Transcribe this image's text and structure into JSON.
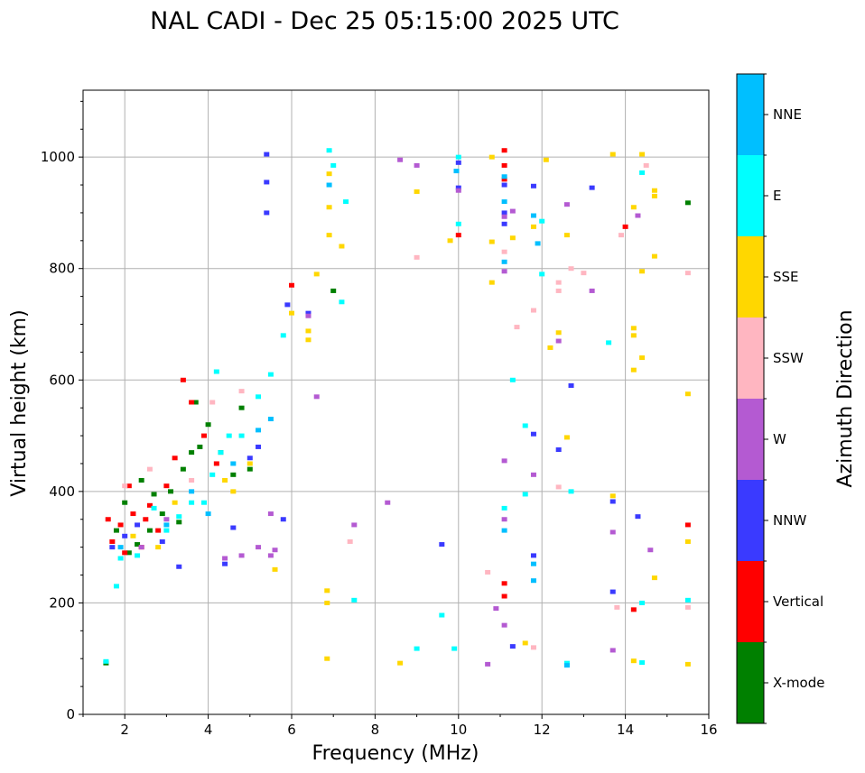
{
  "chart_data": {
    "type": "scatter",
    "title": "NAL CADI - Dec 25 05:15:00 2025 UTC",
    "xlabel": "Frequency (MHz)",
    "ylabel": "Virtual height (km)",
    "xlim": [
      1,
      16
    ],
    "ylim": [
      0,
      1120
    ],
    "xticks": [
      2,
      4,
      6,
      8,
      10,
      12,
      14,
      16
    ],
    "yticks": [
      0,
      200,
      400,
      600,
      800,
      1000
    ],
    "grid": true,
    "colorbar": {
      "title": "Azimuth Direction",
      "categories": [
        {
          "name": "X-mode",
          "color": "#008000"
        },
        {
          "name": "Vertical",
          "color": "#ff0000"
        },
        {
          "name": "NNW",
          "color": "#3a3aff"
        },
        {
          "name": "W",
          "color": "#b45ad2"
        },
        {
          "name": "SSW",
          "color": "#ffb6c1"
        },
        {
          "name": "SSE",
          "color": "#ffd700"
        },
        {
          "name": "E",
          "color": "#00ffff"
        },
        {
          "name": "NNE",
          "color": "#00bfff"
        }
      ]
    },
    "series": [
      {
        "name": "X-mode",
        "points": [
          [
            1.55,
            92
          ],
          [
            1.8,
            330
          ],
          [
            2.1,
            290
          ],
          [
            2.3,
            305
          ],
          [
            2.6,
            330
          ],
          [
            2.9,
            360
          ],
          [
            3.1,
            400
          ],
          [
            3.4,
            440
          ],
          [
            3.6,
            470
          ],
          [
            3.8,
            480
          ],
          [
            4.0,
            520
          ],
          [
            4.3,
            470
          ],
          [
            4.6,
            430
          ],
          [
            4.8,
            550
          ],
          [
            2.0,
            380
          ],
          [
            2.4,
            420
          ],
          [
            2.7,
            395
          ],
          [
            3.3,
            345
          ],
          [
            3.7,
            560
          ],
          [
            5.0,
            440
          ],
          [
            7.0,
            760
          ],
          [
            15.5,
            918
          ]
        ]
      },
      {
        "name": "Vertical",
        "points": [
          [
            1.6,
            350
          ],
          [
            1.7,
            310
          ],
          [
            1.9,
            340
          ],
          [
            2.0,
            290
          ],
          [
            2.2,
            360
          ],
          [
            2.4,
            300
          ],
          [
            2.6,
            375
          ],
          [
            2.8,
            330
          ],
          [
            3.0,
            410
          ],
          [
            3.2,
            460
          ],
          [
            3.4,
            600
          ],
          [
            3.6,
            560
          ],
          [
            3.9,
            500
          ],
          [
            4.2,
            450
          ],
          [
            2.1,
            410
          ],
          [
            2.5,
            350
          ],
          [
            6.0,
            770
          ],
          [
            10.0,
            860
          ],
          [
            11.1,
            235
          ],
          [
            11.1,
            212
          ],
          [
            11.1,
            1012
          ],
          [
            11.1,
            985
          ],
          [
            11.1,
            960
          ],
          [
            14.0,
            875
          ],
          [
            14.2,
            188
          ],
          [
            15.5,
            340
          ]
        ]
      },
      {
        "name": "NNW",
        "points": [
          [
            1.7,
            300
          ],
          [
            2.0,
            320
          ],
          [
            2.3,
            340
          ],
          [
            2.9,
            310
          ],
          [
            3.3,
            265
          ],
          [
            4.4,
            270
          ],
          [
            4.6,
            335
          ],
          [
            5.0,
            460
          ],
          [
            5.2,
            480
          ],
          [
            5.4,
            900
          ],
          [
            5.4,
            955
          ],
          [
            5.4,
            1005
          ],
          [
            5.8,
            350
          ],
          [
            5.9,
            735
          ],
          [
            6.4,
            720
          ],
          [
            10.0,
            945
          ],
          [
            10.0,
            990
          ],
          [
            11.1,
            950
          ],
          [
            11.1,
            900
          ],
          [
            11.1,
            880
          ],
          [
            11.3,
            122
          ],
          [
            11.8,
            285
          ],
          [
            11.8,
            503
          ],
          [
            11.8,
            948
          ],
          [
            12.4,
            475
          ],
          [
            12.7,
            590
          ],
          [
            13.2,
            945
          ],
          [
            13.7,
            220
          ],
          [
            13.7,
            382
          ],
          [
            14.3,
            355
          ],
          [
            9.6,
            305
          ]
        ]
      },
      {
        "name": "W",
        "points": [
          [
            2.4,
            300
          ],
          [
            3.0,
            350
          ],
          [
            4.4,
            280
          ],
          [
            4.8,
            285
          ],
          [
            5.2,
            300
          ],
          [
            5.5,
            285
          ],
          [
            5.5,
            360
          ],
          [
            5.6,
            295
          ],
          [
            6.4,
            715
          ],
          [
            6.6,
            570
          ],
          [
            7.5,
            340
          ],
          [
            8.3,
            380
          ],
          [
            8.6,
            995
          ],
          [
            9.0,
            985
          ],
          [
            10.0,
            940
          ],
          [
            10.7,
            90
          ],
          [
            10.9,
            190
          ],
          [
            11.1,
            455
          ],
          [
            11.1,
            350
          ],
          [
            11.1,
            160
          ],
          [
            11.1,
            795
          ],
          [
            11.1,
            893
          ],
          [
            11.3,
            903
          ],
          [
            11.8,
            430
          ],
          [
            12.4,
            670
          ],
          [
            12.6,
            915
          ],
          [
            13.2,
            760
          ],
          [
            13.7,
            115
          ],
          [
            13.7,
            327
          ],
          [
            14.3,
            895
          ],
          [
            14.6,
            295
          ]
        ]
      },
      {
        "name": "SSW",
        "points": [
          [
            2.0,
            410
          ],
          [
            2.6,
            440
          ],
          [
            3.6,
            420
          ],
          [
            4.1,
            560
          ],
          [
            4.8,
            580
          ],
          [
            7.4,
            310
          ],
          [
            9.0,
            820
          ],
          [
            10.7,
            255
          ],
          [
            11.1,
            830
          ],
          [
            11.4,
            695
          ],
          [
            11.8,
            725
          ],
          [
            11.8,
            120
          ],
          [
            12.4,
            760
          ],
          [
            12.4,
            775
          ],
          [
            12.4,
            408
          ],
          [
            12.7,
            800
          ],
          [
            13.0,
            792
          ],
          [
            13.8,
            192
          ],
          [
            13.9,
            860
          ],
          [
            14.5,
            985
          ],
          [
            15.5,
            192
          ],
          [
            15.5,
            792
          ]
        ]
      },
      {
        "name": "SSE",
        "points": [
          [
            2.2,
            320
          ],
          [
            2.8,
            300
          ],
          [
            3.2,
            380
          ],
          [
            4.4,
            420
          ],
          [
            4.6,
            400
          ],
          [
            5.0,
            450
          ],
          [
            5.6,
            260
          ],
          [
            6.0,
            720
          ],
          [
            6.4,
            672
          ],
          [
            6.4,
            688
          ],
          [
            6.6,
            790
          ],
          [
            6.85,
            222
          ],
          [
            6.85,
            200
          ],
          [
            6.85,
            100
          ],
          [
            6.9,
            860
          ],
          [
            6.9,
            910
          ],
          [
            6.9,
            970
          ],
          [
            7.2,
            840
          ],
          [
            8.6,
            92
          ],
          [
            9.0,
            938
          ],
          [
            9.8,
            850
          ],
          [
            10.8,
            775
          ],
          [
            10.8,
            848
          ],
          [
            10.8,
            1000
          ],
          [
            11.3,
            855
          ],
          [
            11.6,
            128
          ],
          [
            11.8,
            875
          ],
          [
            12.1,
            995
          ],
          [
            12.2,
            658
          ],
          [
            12.4,
            685
          ],
          [
            12.6,
            497
          ],
          [
            12.6,
            860
          ],
          [
            13.7,
            1005
          ],
          [
            13.7,
            392
          ],
          [
            14.2,
            910
          ],
          [
            14.2,
            693
          ],
          [
            14.2,
            680
          ],
          [
            14.2,
            618
          ],
          [
            14.2,
            96
          ],
          [
            14.4,
            1005
          ],
          [
            14.4,
            795
          ],
          [
            14.4,
            640
          ],
          [
            14.7,
            940
          ],
          [
            14.7,
            930
          ],
          [
            14.7,
            822
          ],
          [
            14.7,
            245
          ],
          [
            15.5,
            575
          ],
          [
            15.5,
            310
          ],
          [
            15.5,
            90
          ]
        ]
      },
      {
        "name": "E",
        "points": [
          [
            1.55,
            95
          ],
          [
            1.8,
            230
          ],
          [
            1.9,
            280
          ],
          [
            2.3,
            285
          ],
          [
            2.7,
            370
          ],
          [
            3.0,
            330
          ],
          [
            3.3,
            355
          ],
          [
            3.6,
            380
          ],
          [
            3.9,
            380
          ],
          [
            4.1,
            430
          ],
          [
            4.3,
            470
          ],
          [
            4.5,
            500
          ],
          [
            4.8,
            500
          ],
          [
            5.2,
            570
          ],
          [
            5.5,
            610
          ],
          [
            5.8,
            680
          ],
          [
            4.2,
            615
          ],
          [
            6.9,
            1012
          ],
          [
            7.0,
            985
          ],
          [
            7.2,
            740
          ],
          [
            7.3,
            920
          ],
          [
            7.5,
            205
          ],
          [
            9.0,
            118
          ],
          [
            9.6,
            178
          ],
          [
            9.9,
            118
          ],
          [
            10.0,
            880
          ],
          [
            10.0,
            1000
          ],
          [
            11.1,
            370
          ],
          [
            11.3,
            600
          ],
          [
            11.6,
            518
          ],
          [
            11.6,
            395
          ],
          [
            12.0,
            790
          ],
          [
            12.0,
            885
          ],
          [
            12.6,
            92
          ],
          [
            12.7,
            400
          ],
          [
            13.6,
            667
          ],
          [
            14.4,
            972
          ],
          [
            14.4,
            93
          ],
          [
            14.4,
            200
          ],
          [
            15.5,
            205
          ]
        ]
      },
      {
        "name": "NNE",
        "points": [
          [
            1.9,
            300
          ],
          [
            3.0,
            340
          ],
          [
            3.6,
            400
          ],
          [
            4.0,
            360
          ],
          [
            4.6,
            450
          ],
          [
            5.2,
            510
          ],
          [
            5.5,
            530
          ],
          [
            6.9,
            950
          ],
          [
            9.95,
            975
          ],
          [
            11.1,
            965
          ],
          [
            11.1,
            920
          ],
          [
            11.1,
            812
          ],
          [
            11.1,
            330
          ],
          [
            11.8,
            270
          ],
          [
            11.8,
            240
          ],
          [
            11.8,
            895
          ],
          [
            11.9,
            845
          ],
          [
            12.6,
            88
          ]
        ]
      }
    ]
  }
}
